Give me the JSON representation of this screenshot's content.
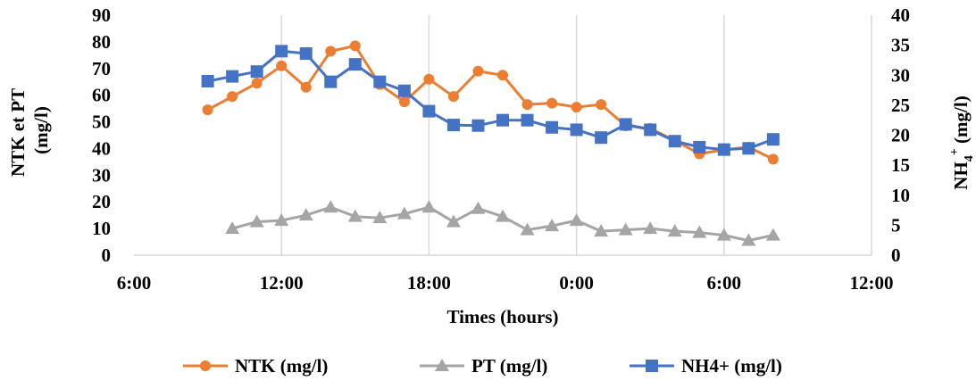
{
  "chart_data": {
    "type": "line",
    "xlabel": "Times (hours)",
    "ylabel_left": [
      "NTK et PT",
      "(mg/l)"
    ],
    "ylabel_right": {
      "main": "NH",
      "sub": "4",
      "sup": "+",
      "tail": " (mg/l)"
    },
    "x_ticks": [
      "6:00",
      "12:00",
      "18:00",
      "0:00",
      "6:00",
      "12:00"
    ],
    "xlim": [
      6,
      36
    ],
    "ylim_left": [
      0,
      90
    ],
    "ylim_right": [
      0,
      40
    ],
    "y_ticks_left": [
      "0",
      "10",
      "20",
      "30",
      "40",
      "50",
      "60",
      "70",
      "80",
      "90"
    ],
    "y_ticks_right": [
      "0",
      "5",
      "10",
      "15",
      "20",
      "25",
      "30",
      "35",
      "40"
    ],
    "grid": "vertical",
    "legend": "bottom",
    "series": [
      {
        "name": "NTK (mg/l)",
        "axis": "left",
        "color": "#ED7D31",
        "marker": "circle",
        "x": [
          9,
          10,
          11,
          12,
          13,
          14,
          15,
          16,
          17,
          18,
          19,
          20,
          21,
          22,
          23,
          24,
          25,
          26,
          27,
          28,
          29,
          30,
          31,
          32
        ],
        "values": [
          54.5,
          59.5,
          64.5,
          71,
          63,
          76.5,
          78.5,
          64,
          57.5,
          66,
          59.5,
          69,
          67.5,
          56.5,
          57,
          55.5,
          56.5,
          48.5,
          47.5,
          43,
          38,
          39.5,
          40.5,
          36
        ]
      },
      {
        "name": "PT (mg/l)",
        "axis": "left",
        "color": "#A5A5A5",
        "marker": "triangle",
        "x": [
          10,
          11,
          12,
          13,
          14,
          15,
          16,
          17,
          18,
          19,
          20,
          21,
          22,
          23,
          24,
          25,
          26,
          27,
          28,
          29,
          30,
          31,
          32
        ],
        "values": [
          10,
          12.5,
          13,
          15,
          18,
          14.5,
          14,
          15.5,
          18,
          12.5,
          17.5,
          14.5,
          9.5,
          11,
          13,
          9,
          9.5,
          10,
          9,
          8.5,
          7.5,
          5.5,
          7.5
        ]
      },
      {
        "name": "NH4+ (mg/l)",
        "axis": "right",
        "color": "#4472C4",
        "marker": "square",
        "x": [
          9,
          10,
          11,
          12,
          13,
          14,
          15,
          16,
          17,
          18,
          19,
          20,
          21,
          22,
          23,
          24,
          25,
          26,
          27,
          28,
          29,
          30,
          31,
          32
        ],
        "values": [
          29,
          29.8,
          30.6,
          34,
          33.6,
          28.9,
          31.8,
          28.9,
          27.4,
          24,
          21.7,
          21.6,
          22.5,
          22.5,
          21.3,
          20.9,
          19.6,
          21.8,
          20.9,
          19,
          18,
          17.6,
          17.8,
          19.3
        ]
      }
    ]
  }
}
